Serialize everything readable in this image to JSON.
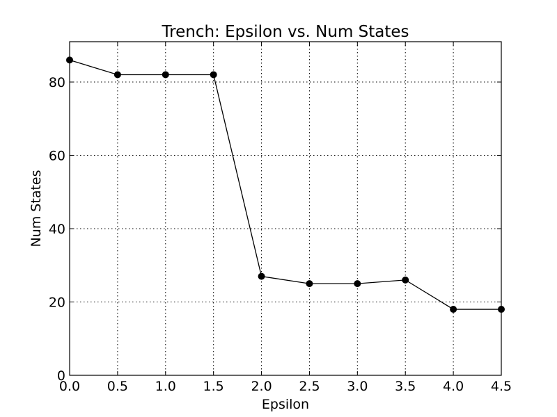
{
  "chart_data": {
    "type": "line",
    "title": "Trench: Epsilon vs. Num States",
    "xlabel": "Epsilon",
    "ylabel": "Num States",
    "xlim": [
      0,
      4.5
    ],
    "ylim": [
      0,
      91
    ],
    "xticks": [
      0,
      0.5,
      1,
      1.5,
      2,
      2.5,
      3,
      3.5,
      4,
      4.5
    ],
    "xtick_labels": [
      "0.0",
      "0.5",
      "1.0",
      "1.5",
      "2.0",
      "2.5",
      "3.0",
      "3.5",
      "4.0",
      "4.5"
    ],
    "yticks": [
      0,
      20,
      40,
      60,
      80
    ],
    "ytick_labels": [
      "0",
      "20",
      "40",
      "60",
      "80"
    ],
    "grid": true,
    "marker": "circle",
    "line_color": "#000000",
    "marker_color": "#000000",
    "series": [
      {
        "x": [
          0,
          0.5,
          1,
          1.5,
          2,
          2.5,
          3,
          3.5,
          4,
          4.5
        ],
        "values": [
          86,
          82,
          82,
          82,
          27,
          25,
          25,
          26,
          18,
          18
        ]
      }
    ]
  }
}
